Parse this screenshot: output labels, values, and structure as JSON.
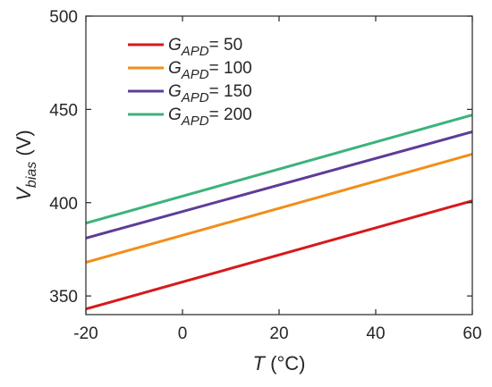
{
  "chart_data": {
    "type": "line",
    "xlabel": {
      "symbol": "T",
      "unit": " (°C)"
    },
    "ylabel": {
      "symbol": "V",
      "subscript": "bias",
      "unit": " (V)"
    },
    "xlim": [
      -20,
      60
    ],
    "ylim": [
      340,
      500
    ],
    "xticks": [
      -20,
      0,
      20,
      40,
      60
    ],
    "yticks": [
      350,
      400,
      450,
      500
    ],
    "xtick_labels": [
      "-20",
      "0",
      "20",
      "40",
      "60"
    ],
    "ytick_labels": [
      "350",
      "400",
      "450",
      "500"
    ],
    "grid": false,
    "legend_position": "top-left",
    "series": [
      {
        "name": "G",
        "subscript": "APD",
        "suffix": "= 50",
        "color": "#d7191c",
        "x": [
          -20,
          60
        ],
        "y": [
          343,
          401
        ]
      },
      {
        "name": "G",
        "subscript": "APD",
        "suffix": "= 100",
        "color": "#f28e1b",
        "x": [
          -20,
          60
        ],
        "y": [
          368,
          426
        ]
      },
      {
        "name": "G",
        "subscript": "APD",
        "suffix": "= 150",
        "color": "#5e3c99",
        "x": [
          -20,
          60
        ],
        "y": [
          381,
          438
        ]
      },
      {
        "name": "G",
        "subscript": "APD",
        "suffix": "= 200",
        "color": "#3cb37a",
        "x": [
          -20,
          60
        ],
        "y": [
          389,
          447
        ]
      }
    ]
  }
}
